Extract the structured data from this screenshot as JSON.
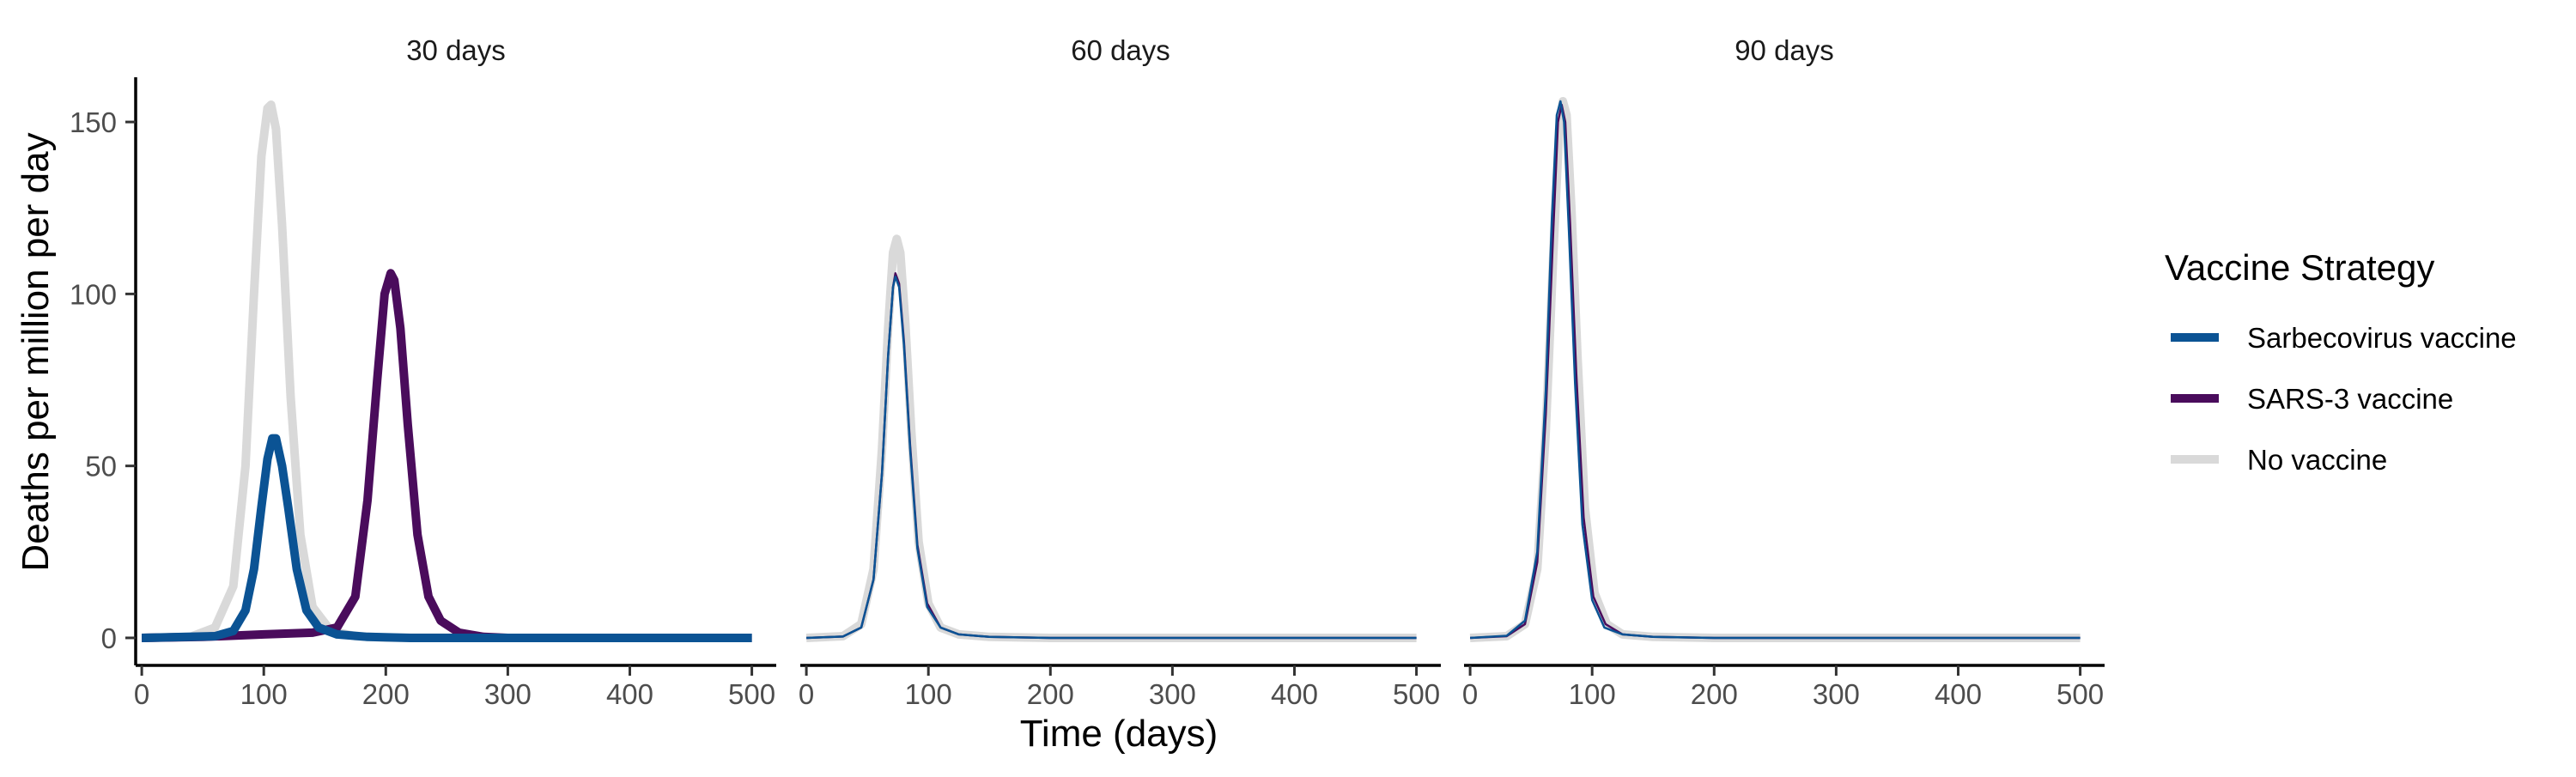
{
  "chart_data": {
    "type": "line",
    "xlabel": "Time (days)",
    "ylabel": "Deaths per million per day",
    "xlim": [
      -5,
      520
    ],
    "ylim": [
      -8,
      163
    ],
    "x_ticks": [
      0,
      100,
      200,
      300,
      400,
      500
    ],
    "y_ticks": [
      0,
      50,
      100,
      150
    ],
    "legend": {
      "title": "Vaccine Strategy",
      "position": "right",
      "entries": [
        {
          "name": "Sarbecovirus vaccine",
          "color": "#0b5394"
        },
        {
          "name": "SARS-3 vaccine",
          "color": "#4a0c5c"
        },
        {
          "name": "No vaccine",
          "color": "#d9d9d9"
        }
      ]
    },
    "panels": [
      {
        "title": "30 days",
        "series": [
          {
            "name": "No vaccine",
            "color": "#d9d9d9",
            "width": "thick",
            "x": [
              0,
              40,
              60,
              75,
              85,
              92,
              98,
              103,
              106,
              110,
              115,
              122,
              130,
              140,
              155,
              175,
              200,
              300,
              400,
              500
            ],
            "y": [
              0,
              0.3,
              3,
              15,
              50,
              100,
              140,
              154,
              155,
              148,
              120,
              70,
              30,
              9,
              2,
              0.5,
              0.1,
              0,
              0,
              0
            ]
          },
          {
            "name": "SARS-3 vaccine",
            "color": "#4a0c5c",
            "width": "thick",
            "x": [
              0,
              50,
              100,
              140,
              160,
              175,
              185,
              193,
              199,
              204,
              207,
              212,
              218,
              226,
              235,
              245,
              260,
              280,
              300,
              400,
              500
            ],
            "y": [
              0,
              0.3,
              1,
              1.5,
              3,
              12,
              40,
              75,
              100,
              106,
              104,
              90,
              62,
              30,
              12,
              5,
              1.5,
              0.3,
              0,
              0,
              0
            ]
          },
          {
            "name": "Sarbecovirus vaccine",
            "color": "#0b5394",
            "width": "thick",
            "x": [
              0,
              60,
              75,
              85,
              92,
              98,
              103,
              107,
              110,
              115,
              120,
              127,
              135,
              145,
              160,
              185,
              220,
              300,
              400,
              500
            ],
            "y": [
              0,
              0.5,
              2,
              8,
              20,
              38,
              52,
              58,
              58,
              50,
              38,
              20,
              8,
              3,
              1,
              0.3,
              0,
              0,
              0,
              0
            ]
          }
        ]
      },
      {
        "title": "60 days",
        "series": [
          {
            "name": "No vaccine",
            "color": "#d9d9d9",
            "width": "thick",
            "x": [
              0,
              30,
              45,
              55,
              62,
              67,
              71,
              74,
              77,
              81,
              86,
              92,
              100,
              110,
              125,
              150,
              200,
              300,
              400,
              500
            ],
            "y": [
              0,
              0.5,
              4,
              20,
              55,
              90,
              112,
              116,
              112,
              92,
              60,
              28,
              10,
              3,
              1,
              0.3,
              0,
              0,
              0,
              0
            ]
          },
          {
            "name": "SARS-3 vaccine",
            "color": "#4a0c5c",
            "width": "thin",
            "x": [
              0,
              30,
              45,
              55,
              62,
              67,
              71,
              73,
              76,
              80,
              85,
              91,
              99,
              110,
              125,
              150,
              200,
              300,
              400,
              500
            ],
            "y": [
              0,
              0.4,
              3,
              17,
              48,
              82,
              102,
              106,
              103,
              86,
              56,
              27,
              10,
              3,
              1,
              0.3,
              0,
              0,
              0,
              0
            ]
          },
          {
            "name": "Sarbecovirus vaccine",
            "color": "#0b5394",
            "width": "thin",
            "x": [
              0,
              30,
              45,
              55,
              62,
              67,
              71,
              73,
              76,
              80,
              85,
              91,
              99,
              110,
              125,
              150,
              200,
              300,
              400,
              500
            ],
            "y": [
              0,
              0.4,
              3,
              17,
              48,
              82,
              102,
              105,
              102,
              85,
              55,
              26,
              9,
              3,
              1,
              0.3,
              0,
              0,
              0,
              0
            ]
          }
        ]
      },
      {
        "title": "90 days",
        "series": [
          {
            "name": "No vaccine",
            "color": "#d9d9d9",
            "width": "thick",
            "x": [
              0,
              30,
              45,
              55,
              62,
              68,
              73,
              76,
              79,
              83,
              88,
              94,
              102,
              112,
              125,
              150,
              200,
              300,
              400,
              500
            ],
            "y": [
              0,
              0.5,
              4,
              20,
              60,
              110,
              148,
              156,
              152,
              125,
              82,
              38,
              13,
              4,
              1,
              0.3,
              0,
              0,
              0,
              0
            ]
          },
          {
            "name": "SARS-3 vaccine",
            "color": "#4a0c5c",
            "width": "thin",
            "x": [
              0,
              30,
              45,
              55,
              62,
              68,
              72,
              75,
              78,
              82,
              87,
              93,
              101,
              111,
              125,
              150,
              200,
              300,
              400,
              500
            ],
            "y": [
              0,
              0.5,
              4,
              22,
              65,
              117,
              150,
              155,
              150,
              120,
              77,
              35,
              12,
              4,
              1,
              0.3,
              0,
              0,
              0,
              0
            ]
          },
          {
            "name": "Sarbecovirus vaccine",
            "color": "#0b5394",
            "width": "thin",
            "x": [
              0,
              30,
              45,
              55,
              62,
              67,
              71,
              74,
              77,
              81,
              86,
              92,
              100,
              110,
              125,
              150,
              200,
              300,
              400,
              500
            ],
            "y": [
              0,
              0.6,
              5,
              25,
              72,
              122,
              152,
              156,
              150,
              118,
              74,
              33,
              11,
              3,
              1,
              0.3,
              0,
              0,
              0,
              0
            ]
          }
        ]
      }
    ]
  }
}
